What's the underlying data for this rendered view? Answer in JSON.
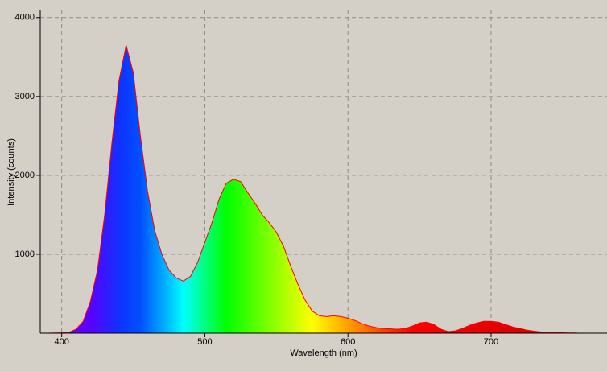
{
  "chart_data": {
    "type": "area",
    "x_label": "Wavelength (nm)",
    "y_label": "Intensity (counts)",
    "x": [
      385,
      390,
      395,
      400,
      405,
      410,
      415,
      420,
      425,
      430,
      435,
      440,
      445,
      450,
      455,
      460,
      465,
      470,
      475,
      480,
      485,
      490,
      495,
      500,
      505,
      510,
      515,
      520,
      525,
      530,
      535,
      540,
      545,
      550,
      555,
      560,
      565,
      570,
      575,
      580,
      585,
      590,
      595,
      600,
      605,
      610,
      615,
      620,
      625,
      630,
      635,
      640,
      645,
      650,
      655,
      660,
      665,
      670,
      675,
      680,
      685,
      690,
      695,
      700,
      705,
      710,
      715,
      720,
      725,
      730,
      735,
      740,
      745,
      750,
      755,
      760
    ],
    "values": [
      0,
      0,
      2,
      5,
      10,
      50,
      150,
      400,
      800,
      1500,
      2400,
      3200,
      3650,
      3300,
      2500,
      1800,
      1300,
      1000,
      800,
      700,
      660,
      720,
      900,
      1150,
      1400,
      1700,
      1900,
      1950,
      1920,
      1780,
      1650,
      1500,
      1400,
      1280,
      1100,
      850,
      620,
      420,
      280,
      220,
      210,
      220,
      210,
      190,
      160,
      120,
      90,
      70,
      60,
      55,
      50,
      60,
      90,
      130,
      140,
      110,
      50,
      20,
      30,
      60,
      100,
      130,
      150,
      150,
      140,
      110,
      80,
      60,
      40,
      25,
      15,
      10,
      5,
      5,
      3,
      2
    ],
    "color": "#ff0000",
    "xlim": [
      385,
      781
    ],
    "ylim": [
      0,
      4100
    ],
    "xticks": [
      400,
      500,
      600,
      700
    ],
    "yticks": [
      1000,
      2000,
      3000,
      4000
    ],
    "grid": true
  }
}
